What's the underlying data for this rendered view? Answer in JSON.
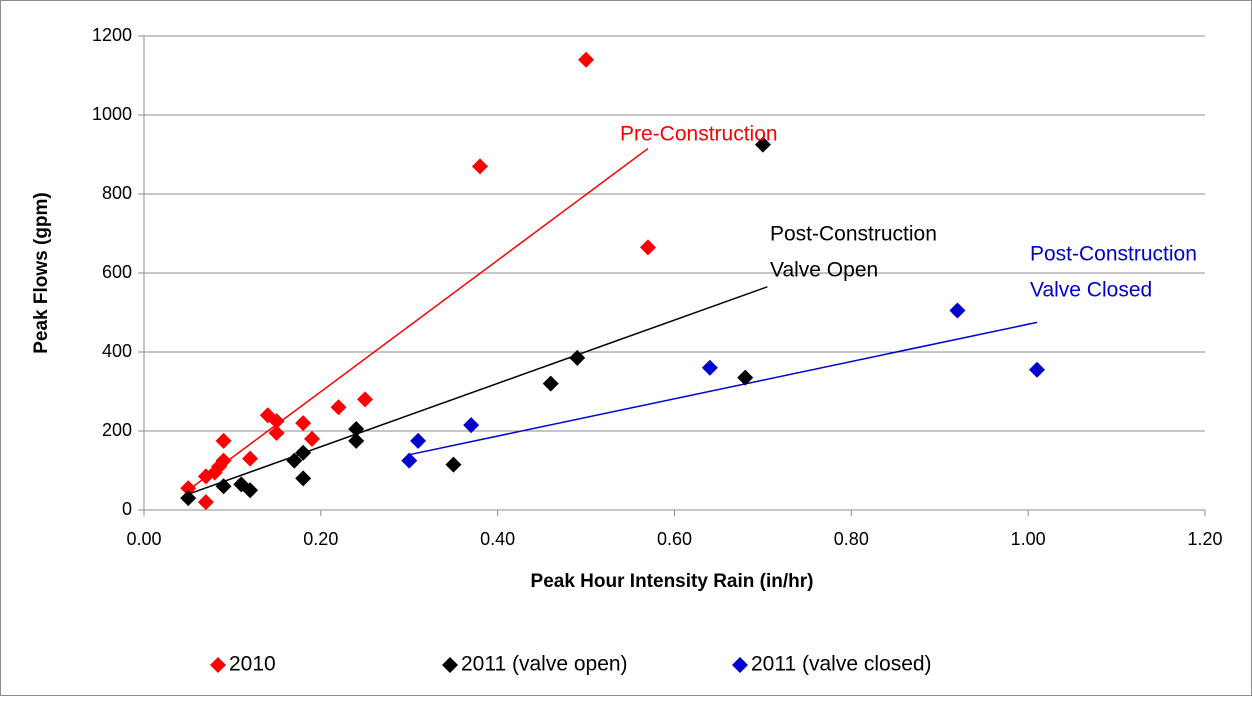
{
  "chart_data": {
    "type": "scatter",
    "x_label": "Peak Hour Intensity Rain (in/hr)",
    "y_label": "Peak Flows (gpm)",
    "xlim": [
      0,
      1.2
    ],
    "ylim": [
      0,
      1200
    ],
    "xticks": [
      {
        "value": 0,
        "label": "0.00"
      },
      {
        "value": 0.2,
        "label": "0.20"
      },
      {
        "value": 0.4,
        "label": "0.40"
      },
      {
        "value": 0.6,
        "label": "0.60"
      },
      {
        "value": 0.8,
        "label": "0.80"
      },
      {
        "value": 1.0,
        "label": "1.00"
      },
      {
        "value": 1.2,
        "label": "1.20"
      }
    ],
    "yticks": [
      0,
      200,
      400,
      600,
      800,
      1000,
      1200
    ],
    "grid": true,
    "legend": "bottom",
    "series": [
      {
        "name": "2010",
        "color": "#ff0000",
        "x": [
          0.05,
          0.07,
          0.07,
          0.08,
          0.085,
          0.09,
          0.09,
          0.12,
          0.14,
          0.15,
          0.15,
          0.18,
          0.19,
          0.22,
          0.25,
          0.38,
          0.5,
          0.57
        ],
        "values": [
          55,
          20,
          85,
          95,
          110,
          125,
          175,
          130,
          240,
          225,
          195,
          220,
          180,
          260,
          280,
          870,
          1140,
          665
        ]
      },
      {
        "name": "2011 (valve open)",
        "color": "#000000",
        "x": [
          0.05,
          0.09,
          0.11,
          0.12,
          0.17,
          0.18,
          0.18,
          0.24,
          0.24,
          0.35,
          0.46,
          0.49,
          0.68,
          0.7
        ],
        "values": [
          30,
          60,
          65,
          50,
          125,
          145,
          80,
          205,
          175,
          115,
          320,
          385,
          335,
          925
        ]
      },
      {
        "name": "2011 (valve closed)",
        "color": "#0000cc",
        "x": [
          0.3,
          0.31,
          0.37,
          0.64,
          0.92,
          1.01
        ],
        "values": [
          125,
          175,
          215,
          360,
          505,
          355
        ]
      }
    ],
    "trendlines": [
      {
        "color": "#ff0000",
        "x": [
          0.05,
          0.57
        ],
        "values": [
          50,
          915
        ]
      },
      {
        "color": "#000000",
        "x": [
          0.05,
          0.705
        ],
        "values": [
          40,
          565
        ]
      },
      {
        "color": "#0000cc",
        "x": [
          0.3,
          1.01
        ],
        "values": [
          140,
          475
        ]
      }
    ],
    "annotations": [
      {
        "color": "#ff0000",
        "lines": [
          "Pre-Construction"
        ]
      },
      {
        "color": "#000000",
        "lines": [
          "Post-Construction",
          "Valve Open"
        ]
      },
      {
        "color": "#0000cc",
        "lines": [
          "Post-Construction",
          "Valve Closed"
        ]
      }
    ]
  }
}
